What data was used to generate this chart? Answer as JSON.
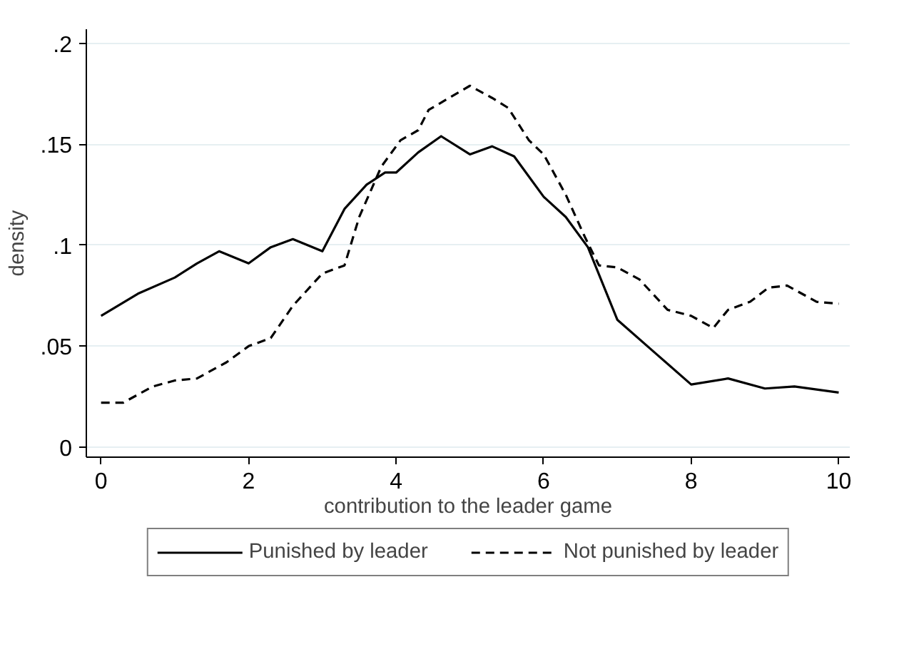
{
  "chart_data": {
    "type": "line",
    "xlabel": "contribution to the leader game",
    "ylabel": "density",
    "xlim": [
      -0.2,
      10.15
    ],
    "ylim": [
      -0.005,
      0.207
    ],
    "xticks": [
      0,
      2,
      4,
      6,
      8,
      10
    ],
    "yticks": [
      {
        "value": 0,
        "label": "0"
      },
      {
        "value": 0.05,
        "label": ".05"
      },
      {
        "value": 0.1,
        "label": ".1"
      },
      {
        "value": 0.15,
        "label": ".15"
      },
      {
        "value": 0.2,
        "label": ".2"
      }
    ],
    "grid": "y",
    "legend": "bottom",
    "series": [
      {
        "name": "Punished by leader",
        "color": "#000000",
        "line_style": "solid",
        "x": [
          0,
          0.5,
          1,
          1.3,
          1.6,
          2,
          2.3,
          2.6,
          3,
          3.3,
          3.6,
          3.85,
          4,
          4.3,
          4.61,
          5,
          5.3,
          5.6,
          6,
          6.3,
          6.6,
          7,
          7.5,
          8,
          8.5,
          9,
          9.4,
          10
        ],
        "values": [
          0.065,
          0.076,
          0.084,
          0.091,
          0.097,
          0.091,
          0.099,
          0.103,
          0.097,
          0.118,
          0.13,
          0.136,
          0.136,
          0.146,
          0.154,
          0.145,
          0.149,
          0.144,
          0.124,
          0.114,
          0.099,
          0.063,
          0.047,
          0.031,
          0.034,
          0.029,
          0.03,
          0.027
        ]
      },
      {
        "name": "Not punished by leader",
        "color": "#000000",
        "line_style": "dashed",
        "x": [
          0,
          0.3,
          0.7,
          1,
          1.3,
          1.7,
          2,
          2.3,
          2.6,
          3,
          3.3,
          3.5,
          3.8,
          4.06,
          4.3,
          4.44,
          4.72,
          5,
          5.3,
          5.52,
          5.8,
          6,
          6.3,
          6.56,
          6.75,
          7,
          7.3,
          7.68,
          8,
          8.3,
          8.5,
          8.8,
          9.05,
          9.3,
          9.7,
          10
        ],
        "values": [
          0.022,
          0.022,
          0.03,
          0.033,
          0.034,
          0.042,
          0.05,
          0.054,
          0.07,
          0.086,
          0.09,
          0.114,
          0.139,
          0.152,
          0.157,
          0.167,
          0.173,
          0.179,
          0.173,
          0.168,
          0.152,
          0.145,
          0.125,
          0.104,
          0.09,
          0.089,
          0.083,
          0.068,
          0.065,
          0.059,
          0.068,
          0.072,
          0.079,
          0.08,
          0.072,
          0.071
        ]
      }
    ]
  }
}
